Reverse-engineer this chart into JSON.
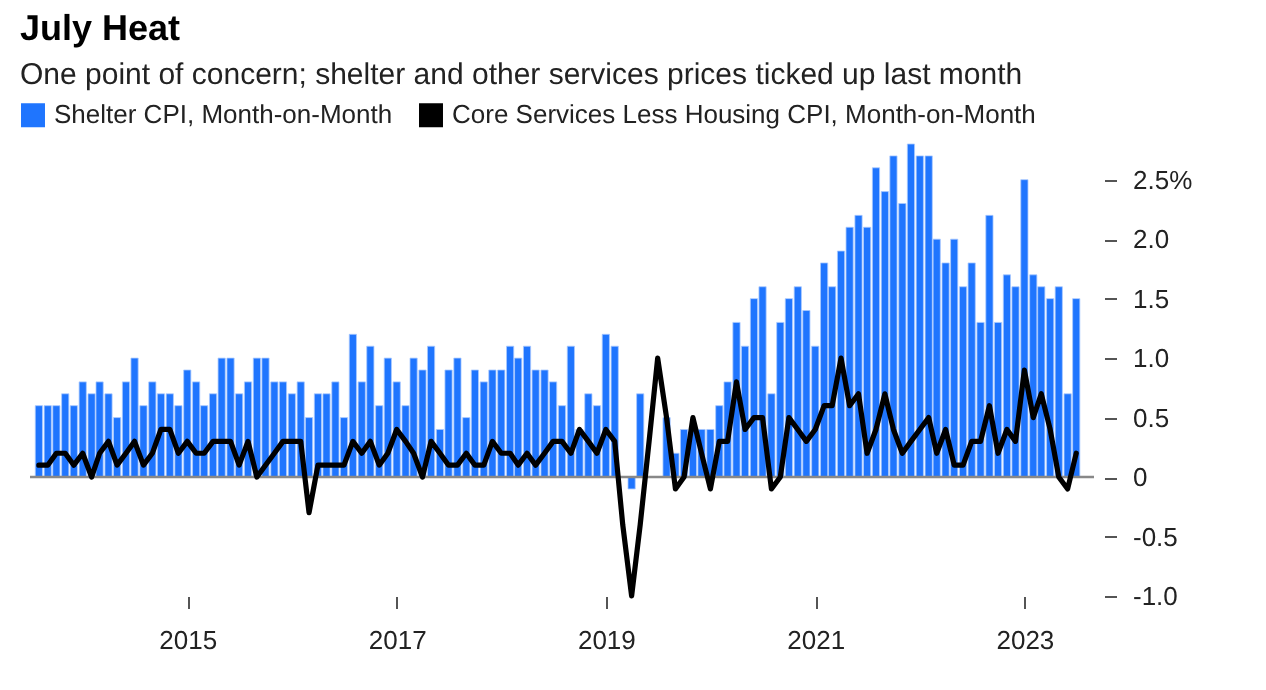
{
  "chart_data": {
    "type": "bar",
    "title": "July Heat",
    "subtitle": "One point of concern; shelter and other services prices ticked up last month",
    "x": [
      "2013-08",
      "2013-09",
      "2013-10",
      "2013-11",
      "2013-12",
      "2014-01",
      "2014-02",
      "2014-03",
      "2014-04",
      "2014-05",
      "2014-06",
      "2014-07",
      "2014-08",
      "2014-09",
      "2014-10",
      "2014-11",
      "2014-12",
      "2015-01",
      "2015-02",
      "2015-03",
      "2015-04",
      "2015-05",
      "2015-06",
      "2015-07",
      "2015-08",
      "2015-09",
      "2015-10",
      "2015-11",
      "2015-12",
      "2016-01",
      "2016-02",
      "2016-03",
      "2016-04",
      "2016-05",
      "2016-06",
      "2016-07",
      "2016-08",
      "2016-09",
      "2016-10",
      "2016-11",
      "2016-12",
      "2017-01",
      "2017-02",
      "2017-03",
      "2017-04",
      "2017-05",
      "2017-06",
      "2017-07",
      "2017-08",
      "2017-09",
      "2017-10",
      "2017-11",
      "2017-12",
      "2018-01",
      "2018-02",
      "2018-03",
      "2018-04",
      "2018-05",
      "2018-06",
      "2018-07",
      "2018-08",
      "2018-09",
      "2018-10",
      "2018-11",
      "2018-12",
      "2019-01",
      "2019-02",
      "2019-03",
      "2019-04",
      "2019-05",
      "2019-06",
      "2019-07",
      "2019-08",
      "2019-09",
      "2019-10",
      "2019-11",
      "2019-12",
      "2020-01",
      "2020-02",
      "2020-03",
      "2020-04",
      "2020-05",
      "2020-06",
      "2020-07",
      "2020-08",
      "2020-09",
      "2020-10",
      "2020-11",
      "2020-12",
      "2021-01",
      "2021-02",
      "2021-03",
      "2021-04",
      "2021-05",
      "2021-06",
      "2021-07",
      "2021-08",
      "2021-09",
      "2021-10",
      "2021-11",
      "2021-12",
      "2022-01",
      "2022-02",
      "2022-03",
      "2022-04",
      "2022-05",
      "2022-06",
      "2022-07",
      "2022-08",
      "2022-09",
      "2022-10",
      "2022-11",
      "2022-12",
      "2023-01",
      "2023-02",
      "2023-03",
      "2023-04",
      "2023-05",
      "2023-06",
      "2023-07"
    ],
    "series": [
      {
        "name": "Shelter CPI, Month-on-Month",
        "type": "bar",
        "color": "#1f75fe",
        "values": [
          0.6,
          0.6,
          0.6,
          0.7,
          0.6,
          0.8,
          0.7,
          0.8,
          0.7,
          0.5,
          0.8,
          1.0,
          0.6,
          0.8,
          0.7,
          0.7,
          0.6,
          0.9,
          0.8,
          0.6,
          0.7,
          1.0,
          1.0,
          0.7,
          0.8,
          1.0,
          1.0,
          0.8,
          0.8,
          0.7,
          0.8,
          0.5,
          0.7,
          0.7,
          0.8,
          0.5,
          1.2,
          0.8,
          1.1,
          0.6,
          1.0,
          0.8,
          0.6,
          1.0,
          0.9,
          1.1,
          0.4,
          0.9,
          1.0,
          0.5,
          0.9,
          0.8,
          0.9,
          0.9,
          1.1,
          1.0,
          1.1,
          0.9,
          0.9,
          0.8,
          0.6,
          1.1,
          0.4,
          0.7,
          0.6,
          1.2,
          1.1,
          null,
          -0.1,
          0.7,
          null,
          null,
          0.5,
          0.2,
          0.4,
          0.4,
          0.4,
          0.4,
          0.6,
          0.8,
          1.3,
          1.1,
          1.5,
          1.6,
          0.7,
          1.3,
          1.5,
          1.6,
          1.4,
          1.1,
          1.8,
          1.6,
          1.9,
          2.1,
          2.2,
          2.1,
          2.6,
          2.4,
          2.7,
          2.3,
          2.8,
          2.7,
          2.7,
          2.0,
          1.8,
          2.0,
          1.6,
          1.8,
          1.3,
          2.2,
          1.3,
          1.7,
          1.6,
          2.5,
          1.7,
          1.6,
          1.5,
          1.6,
          0.7,
          1.5
        ]
      },
      {
        "name": "Core Services Less Housing CPI, Month-on-Month",
        "type": "line",
        "color": "#000000",
        "values": [
          0.1,
          0.1,
          0.2,
          0.2,
          0.1,
          0.2,
          0.0,
          0.2,
          0.3,
          0.1,
          0.2,
          0.3,
          0.1,
          0.2,
          0.4,
          0.4,
          0.2,
          0.3,
          0.2,
          0.2,
          0.3,
          0.3,
          0.3,
          0.1,
          0.3,
          0.0,
          0.1,
          0.2,
          0.3,
          0.3,
          0.3,
          -0.3,
          0.1,
          0.1,
          0.1,
          0.1,
          0.3,
          0.2,
          0.3,
          0.1,
          0.2,
          0.4,
          0.3,
          0.2,
          0.0,
          0.3,
          0.2,
          0.1,
          0.1,
          0.2,
          0.1,
          0.1,
          0.3,
          0.2,
          0.2,
          0.1,
          0.2,
          0.1,
          0.2,
          0.3,
          0.3,
          0.2,
          0.4,
          0.3,
          0.2,
          0.4,
          0.3,
          -0.4,
          -1.0,
          -0.4,
          0.3,
          1.0,
          0.5,
          -0.1,
          0.0,
          0.5,
          0.2,
          -0.1,
          0.3,
          0.3,
          0.8,
          0.4,
          0.5,
          0.5,
          -0.1,
          0.0,
          0.5,
          0.4,
          0.3,
          0.4,
          0.6,
          0.6,
          1.0,
          0.6,
          0.7,
          0.2,
          0.4,
          0.7,
          0.4,
          0.2,
          0.3,
          0.4,
          0.5,
          0.2,
          0.4,
          0.1,
          0.1,
          0.3,
          0.3,
          0.6,
          0.2,
          0.4,
          0.3,
          0.9,
          0.5,
          0.7,
          0.4,
          0.0,
          -0.1,
          0.2
        ]
      }
    ],
    "xlim": [
      "2013-07",
      "2023-09"
    ],
    "xticks": [
      "2015",
      "2017",
      "2019",
      "2021",
      "2023"
    ],
    "ylim": [
      -1.0,
      2.8
    ],
    "yticks": [
      {
        "value": -1.0,
        "label": "-1.0"
      },
      {
        "value": -0.5,
        "label": "-0.5"
      },
      0,
      {
        "value": 0.5,
        "label": "0.5"
      },
      {
        "value": 1.0,
        "label": "1.0"
      },
      {
        "value": 1.5,
        "label": "1.5"
      },
      {
        "value": 2.0,
        "label": "2.0"
      },
      {
        "value": 2.5,
        "label": "2.5%"
      }
    ],
    "ref_lines": [
      {
        "axis": "y",
        "value": 0,
        "color": "#888888"
      }
    ],
    "legend": "top left",
    "grid": false,
    "line_style": "solid"
  }
}
